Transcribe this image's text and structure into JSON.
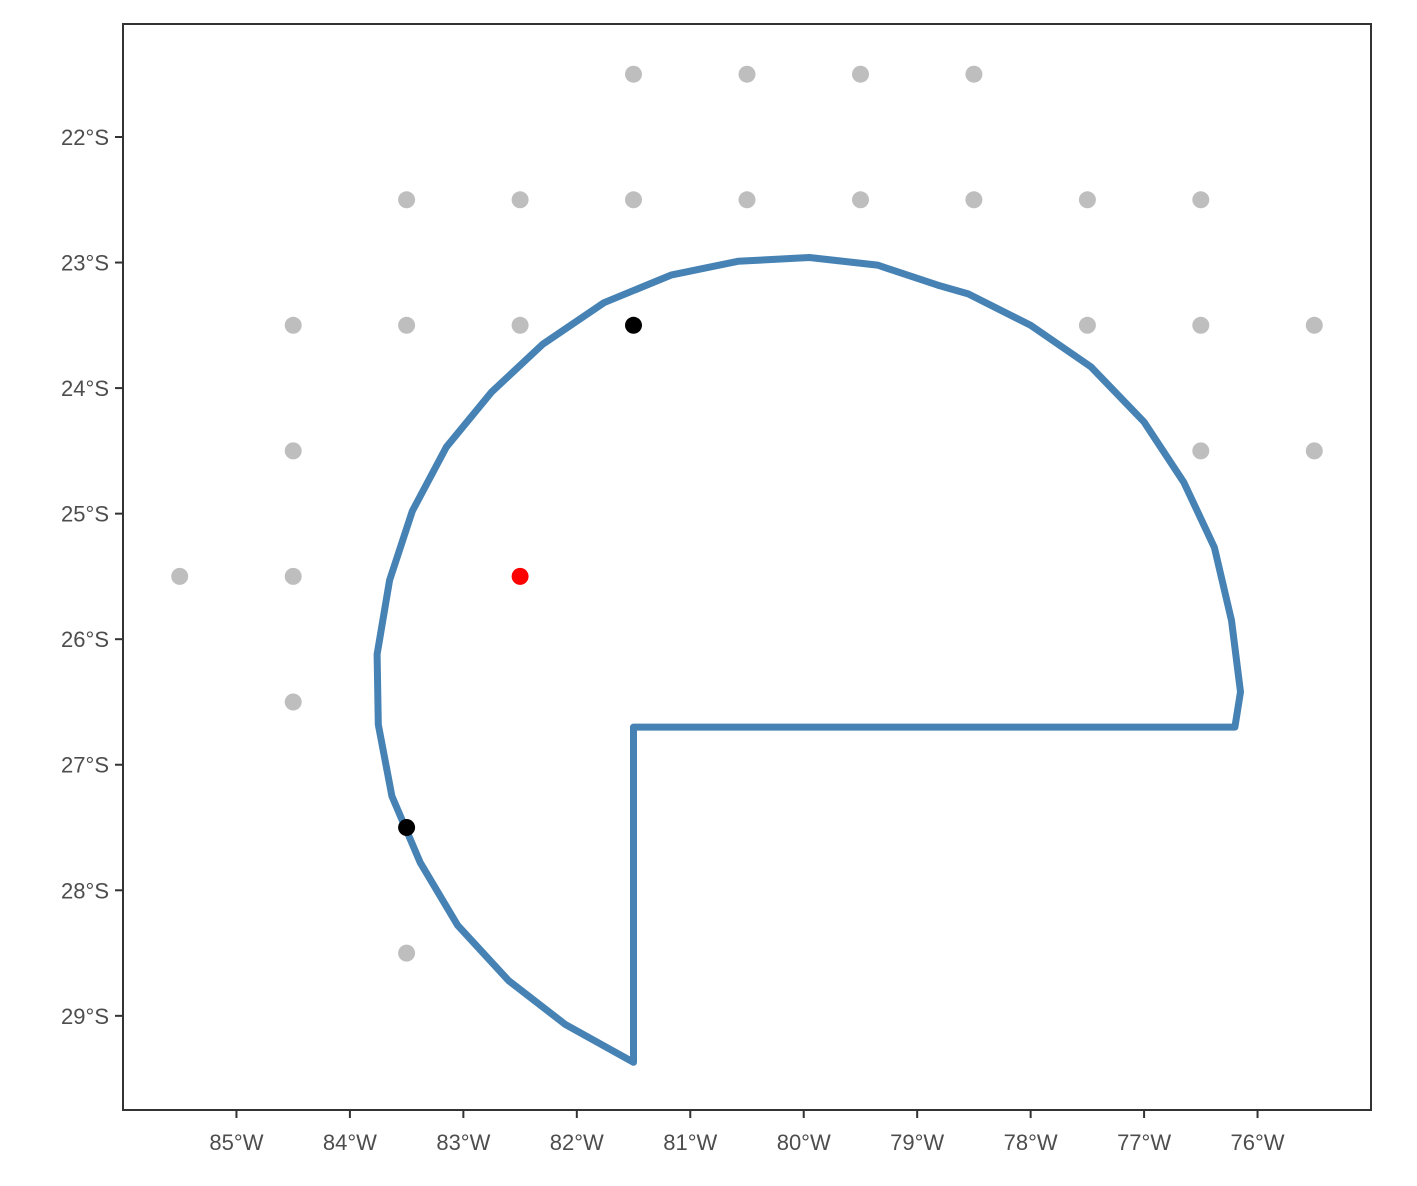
{
  "chart_data": {
    "type": "scatter",
    "title": "",
    "xlabel": "",
    "ylabel": "",
    "xlim": [
      -86.0,
      -75.0
    ],
    "ylim": [
      -29.75,
      -21.1
    ],
    "grid": false,
    "legend": "none",
    "x_ticks": [
      {
        "value": -85,
        "label": "85°W"
      },
      {
        "value": -84,
        "label": "84°W"
      },
      {
        "value": -83,
        "label": "83°W"
      },
      {
        "value": -82,
        "label": "82°W"
      },
      {
        "value": -81,
        "label": "81°W"
      },
      {
        "value": -80,
        "label": "80°W"
      },
      {
        "value": -79,
        "label": "79°W"
      },
      {
        "value": -78,
        "label": "78°W"
      },
      {
        "value": -77,
        "label": "77°W"
      },
      {
        "value": -76,
        "label": "76°W"
      }
    ],
    "y_ticks": [
      {
        "value": -22,
        "label": "22°S"
      },
      {
        "value": -23,
        "label": "23°S"
      },
      {
        "value": -24,
        "label": "24°S"
      },
      {
        "value": -25,
        "label": "25°S"
      },
      {
        "value": -26,
        "label": "26°S"
      },
      {
        "value": -27,
        "label": "27°S"
      },
      {
        "value": -28,
        "label": "28°S"
      },
      {
        "value": -29,
        "label": "29°S"
      }
    ],
    "polygon": {
      "color": "#4682b4",
      "points": [
        [
          -81.5,
          -26.7
        ],
        [
          -76.2,
          -26.7
        ],
        [
          -76.15,
          -26.42
        ],
        [
          -76.23,
          -25.85
        ],
        [
          -76.38,
          -25.27
        ],
        [
          -76.65,
          -24.75
        ],
        [
          -77.0,
          -24.27
        ],
        [
          -77.47,
          -23.83
        ],
        [
          -78.0,
          -23.5
        ],
        [
          -78.55,
          -23.25
        ],
        [
          -78.82,
          -23.18
        ],
        [
          -79.35,
          -23.02
        ],
        [
          -79.95,
          -22.96
        ],
        [
          -80.58,
          -22.99
        ],
        [
          -81.17,
          -23.1
        ],
        [
          -81.76,
          -23.32
        ],
        [
          -82.3,
          -23.65
        ],
        [
          -82.75,
          -24.03
        ],
        [
          -83.15,
          -24.47
        ],
        [
          -83.45,
          -24.98
        ],
        [
          -83.65,
          -25.53
        ],
        [
          -83.76,
          -26.12
        ],
        [
          -83.75,
          -26.68
        ],
        [
          -83.63,
          -27.25
        ],
        [
          -83.38,
          -27.78
        ],
        [
          -83.05,
          -28.28
        ],
        [
          -82.6,
          -28.72
        ],
        [
          -82.1,
          -29.07
        ],
        [
          -81.5,
          -29.37
        ],
        [
          -81.5,
          -26.7
        ]
      ]
    },
    "series": [
      {
        "color": "#bebebe",
        "points": [
          [
            -81.5,
            -21.5
          ],
          [
            -80.5,
            -21.5
          ],
          [
            -79.5,
            -21.5
          ],
          [
            -78.5,
            -21.5
          ],
          [
            -83.5,
            -22.5
          ],
          [
            -82.5,
            -22.5
          ],
          [
            -81.5,
            -22.5
          ],
          [
            -80.5,
            -22.5
          ],
          [
            -79.5,
            -22.5
          ],
          [
            -78.5,
            -22.5
          ],
          [
            -77.5,
            -22.5
          ],
          [
            -76.5,
            -22.5
          ],
          [
            -84.5,
            -23.5
          ],
          [
            -83.5,
            -23.5
          ],
          [
            -82.5,
            -23.5
          ],
          [
            -77.5,
            -23.5
          ],
          [
            -76.5,
            -23.5
          ],
          [
            -75.5,
            -23.5
          ],
          [
            -84.5,
            -24.5
          ],
          [
            -76.5,
            -24.5
          ],
          [
            -75.5,
            -24.5
          ],
          [
            -85.5,
            -25.5
          ],
          [
            -84.5,
            -25.5
          ],
          [
            -84.5,
            -26.5
          ],
          [
            -83.5,
            -28.5
          ]
        ]
      },
      {
        "color": "#000000",
        "points": [
          [
            -81.5,
            -23.5
          ],
          [
            -83.5,
            -27.5
          ]
        ]
      },
      {
        "color": "#ff0000",
        "points": [
          [
            -82.5,
            -25.5
          ]
        ]
      }
    ]
  }
}
